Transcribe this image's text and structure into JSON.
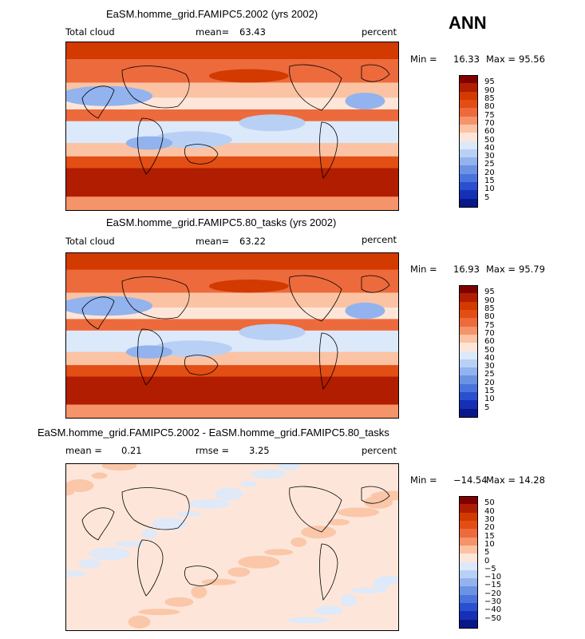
{
  "season": "ANN",
  "chart_data": [
    {
      "type": "heatmap",
      "title": "EaSM.homme_grid.FAMIPC5.2002 (yrs 2002)",
      "left_label": "Total cloud",
      "stat_label": "mean=",
      "stat_value": "63.43",
      "units": "percent",
      "min_label": "Min =",
      "min_value": "16.33",
      "max_label": "Max =",
      "max_value": "95.56",
      "colorbar": {
        "levels": [
          "95",
          "90",
          "85",
          "80",
          "75",
          "70",
          "60",
          "50",
          "40",
          "30",
          "25",
          "20",
          "15",
          "10",
          "5"
        ],
        "colors": [
          "#800000",
          "#b11d00",
          "#d23a00",
          "#e24e14",
          "#ed6a3c",
          "#f5936a",
          "#fbc3a3",
          "#fde6d9",
          "#dce9fb",
          "#b9d0f5",
          "#92b3ee",
          "#6c92e4",
          "#4a73dc",
          "#2a4fcf",
          "#1530b5",
          "#08178a"
        ]
      }
    },
    {
      "type": "heatmap",
      "title": "EaSM.homme_grid.FAMIPC5.80_tasks (yrs 2002)",
      "left_label": "Total cloud",
      "stat_label": "mean=",
      "stat_value": "63.22",
      "units": "percent",
      "min_label": "Min =",
      "min_value": "16.93",
      "max_label": "Max =",
      "max_value": "95.79",
      "colorbar": {
        "levels": [
          "95",
          "90",
          "85",
          "80",
          "75",
          "70",
          "60",
          "50",
          "40",
          "30",
          "25",
          "20",
          "15",
          "10",
          "5"
        ],
        "colors": [
          "#800000",
          "#b11d00",
          "#d23a00",
          "#e24e14",
          "#ed6a3c",
          "#f5936a",
          "#fbc3a3",
          "#fde6d9",
          "#dce9fb",
          "#b9d0f5",
          "#92b3ee",
          "#6c92e4",
          "#4a73dc",
          "#2a4fcf",
          "#1530b5",
          "#08178a"
        ]
      }
    },
    {
      "type": "heatmap",
      "title": "EaSM.homme_grid.FAMIPC5.2002 - EaSM.homme_grid.FAMIPC5.80_tasks",
      "left_label": "mean =",
      "left_value": "0.21",
      "stat_label": "rmse =",
      "stat_value": "3.25",
      "units": "percent",
      "min_label": "Min =",
      "min_value": "−14.54",
      "max_label": "Max =",
      "max_value": "14.28",
      "colorbar": {
        "levels": [
          "50",
          "40",
          "30",
          "20",
          "15",
          "10",
          "5",
          "0",
          "−5",
          "−10",
          "−15",
          "−20",
          "−30",
          "−40",
          "−50"
        ],
        "colors": [
          "#800000",
          "#b11d00",
          "#d23a00",
          "#e24e14",
          "#ed6a3c",
          "#f5936a",
          "#fbc3a3",
          "#fde6d9",
          "#dce9fb",
          "#b9d0f5",
          "#92b3ee",
          "#6c92e4",
          "#4a73dc",
          "#2a4fcf",
          "#1530b5",
          "#08178a"
        ]
      }
    }
  ]
}
